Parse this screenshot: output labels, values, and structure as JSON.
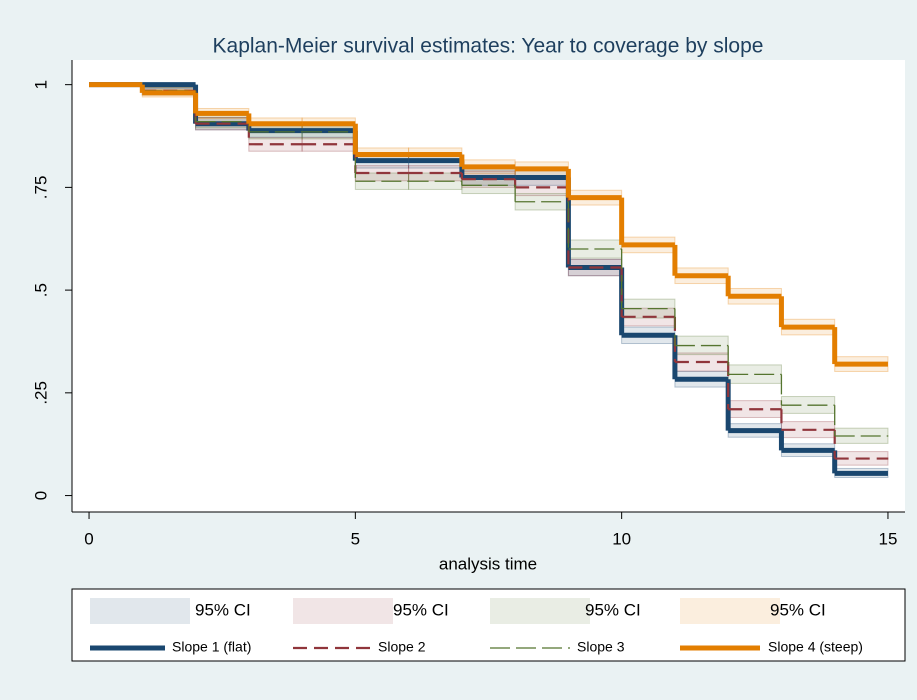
{
  "chart_data": {
    "type": "step",
    "title": "Kaplan-Meier survival estimates: Year to coverage by slope",
    "x_label": "analysis time",
    "x": [
      0,
      1,
      2,
      3,
      4,
      5,
      6,
      7,
      8,
      9,
      10,
      11,
      12,
      13,
      14,
      15
    ],
    "xlim": [
      -0.32,
      15.32
    ],
    "xticks": [
      0,
      5,
      10,
      15
    ],
    "ylim": [
      -0.04,
      1.06
    ],
    "yticks": [
      0,
      {
        "value": 0.25,
        "label": ".25"
      },
      {
        "value": 0.5,
        "label": ".5"
      },
      {
        "value": 0.75,
        "label": ".75"
      },
      1
    ],
    "series": [
      {
        "name": "Slope 1 (flat)",
        "ci_label": "95% CI",
        "color": "#1a476f",
        "line_width": 5,
        "dash": "none",
        "values": [
          1,
          1,
          0.905,
          0.888,
          0.888,
          0.815,
          0.815,
          0.774,
          0.774,
          0.555,
          0.39,
          0.283,
          0.158,
          0.11,
          0.054,
          0.054
        ],
        "lower": [
          1,
          0.99,
          0.89,
          0.872,
          0.872,
          0.797,
          0.797,
          0.755,
          0.755,
          0.535,
          0.37,
          0.264,
          0.142,
          0.095,
          0.044,
          0.044
        ],
        "upper": [
          1,
          1,
          0.92,
          0.903,
          0.903,
          0.833,
          0.833,
          0.792,
          0.792,
          0.575,
          0.41,
          0.302,
          0.175,
          0.126,
          0.066,
          0.066
        ]
      },
      {
        "name": "Slope 2",
        "ci_label": "95% CI",
        "color": "#90353b",
        "line_width": 2.2,
        "dash": "14 7",
        "values": [
          1,
          0.985,
          0.905,
          0.855,
          0.855,
          0.785,
          0.785,
          0.77,
          0.75,
          0.555,
          0.435,
          0.325,
          0.21,
          0.16,
          0.09,
          0.09
        ],
        "lower": [
          1,
          0.975,
          0.89,
          0.838,
          0.838,
          0.766,
          0.766,
          0.75,
          0.73,
          0.535,
          0.413,
          0.303,
          0.19,
          0.141,
          0.074,
          0.074
        ],
        "upper": [
          1,
          0.993,
          0.92,
          0.871,
          0.871,
          0.803,
          0.803,
          0.789,
          0.769,
          0.575,
          0.456,
          0.347,
          0.231,
          0.18,
          0.107,
          0.107
        ]
      },
      {
        "name": "Slope 3",
        "ci_label": "95% CI",
        "color": "#55752f",
        "line_width": 1.3,
        "dash": "20 6",
        "values": [
          1,
          0.985,
          0.91,
          0.885,
          0.885,
          0.765,
          0.765,
          0.755,
          0.715,
          0.6,
          0.455,
          0.365,
          0.295,
          0.22,
          0.145,
          0.145
        ],
        "lower": [
          1,
          0.975,
          0.895,
          0.868,
          0.868,
          0.745,
          0.745,
          0.735,
          0.695,
          0.578,
          0.432,
          0.343,
          0.273,
          0.2,
          0.127,
          0.127
        ],
        "upper": [
          1,
          0.993,
          0.925,
          0.902,
          0.902,
          0.785,
          0.785,
          0.775,
          0.735,
          0.622,
          0.478,
          0.388,
          0.318,
          0.241,
          0.164,
          0.164
        ]
      },
      {
        "name": "Slope 4 (steep)",
        "ci_label": "95% CI",
        "color": "#e37e00",
        "line_width": 5,
        "dash": "none",
        "values": [
          1,
          0.98,
          0.93,
          0.905,
          0.905,
          0.83,
          0.83,
          0.8,
          0.795,
          0.725,
          0.61,
          0.535,
          0.485,
          0.41,
          0.32,
          0.32
        ],
        "lower": [
          1,
          0.97,
          0.918,
          0.891,
          0.891,
          0.814,
          0.814,
          0.783,
          0.778,
          0.707,
          0.591,
          0.516,
          0.466,
          0.391,
          0.302,
          0.302
        ],
        "upper": [
          1,
          0.988,
          0.942,
          0.919,
          0.919,
          0.846,
          0.846,
          0.817,
          0.812,
          0.743,
          0.629,
          0.554,
          0.504,
          0.429,
          0.338,
          0.338
        ]
      }
    ]
  }
}
